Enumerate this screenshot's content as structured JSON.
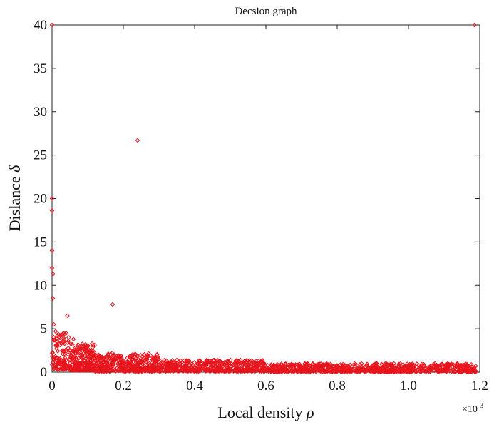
{
  "chart_data": {
    "type": "scatter",
    "title": "Decsion graph",
    "xlabel_text": "Local density",
    "xlabel_symbol": "ρ",
    "ylabel_text": "Dislance",
    "ylabel_symbol": "δ",
    "x_multiplier": "×10",
    "x_multiplier_exp": "-3",
    "xlim": [
      0,
      1.2
    ],
    "ylim": [
      0,
      40
    ],
    "xticks": [
      0,
      0.2,
      0.4,
      0.6,
      0.8,
      1.0,
      1.2
    ],
    "xtick_labels": [
      "0",
      "0.2",
      "0.4",
      "0.6",
      "0.8",
      "1.0",
      "1.2"
    ],
    "yticks": [
      0,
      5,
      10,
      15,
      20,
      25,
      30,
      35,
      40
    ],
    "ytick_labels": [
      "0",
      "5",
      "10",
      "15",
      "20",
      "25",
      "30",
      "35",
      "40"
    ],
    "grid": false,
    "marker": "diamond",
    "marker_color": "#e8141c",
    "outlier_points": [
      [
        0.0,
        40.0
      ],
      [
        1.185,
        40.0
      ],
      [
        0.24,
        26.7
      ],
      [
        0.0,
        20.0
      ],
      [
        0.0,
        18.6
      ],
      [
        0.0,
        14.0
      ],
      [
        0.0,
        12.0
      ],
      [
        0.003,
        11.3
      ],
      [
        0.002,
        8.5
      ],
      [
        0.17,
        7.8
      ],
      [
        0.043,
        6.5
      ],
      [
        0.005,
        5.5
      ],
      [
        0.01,
        4.7
      ],
      [
        0.025,
        4.3
      ],
      [
        0.06,
        3.8
      ]
    ],
    "dense_band_regions": [
      {
        "x_range": [
          0.0,
          0.05
        ],
        "y_range": [
          0.3,
          4.5
        ],
        "count": 120
      },
      {
        "x_range": [
          0.05,
          0.12
        ],
        "y_range": [
          0.2,
          3.3
        ],
        "count": 240
      },
      {
        "x_range": [
          0.12,
          0.3
        ],
        "y_range": [
          0.1,
          2.2
        ],
        "count": 420
      },
      {
        "x_range": [
          0.3,
          0.6
        ],
        "y_range": [
          0.1,
          1.4
        ],
        "count": 480
      },
      {
        "x_range": [
          0.6,
          1.19
        ],
        "y_range": [
          0.05,
          1.0
        ],
        "count": 780
      }
    ]
  }
}
